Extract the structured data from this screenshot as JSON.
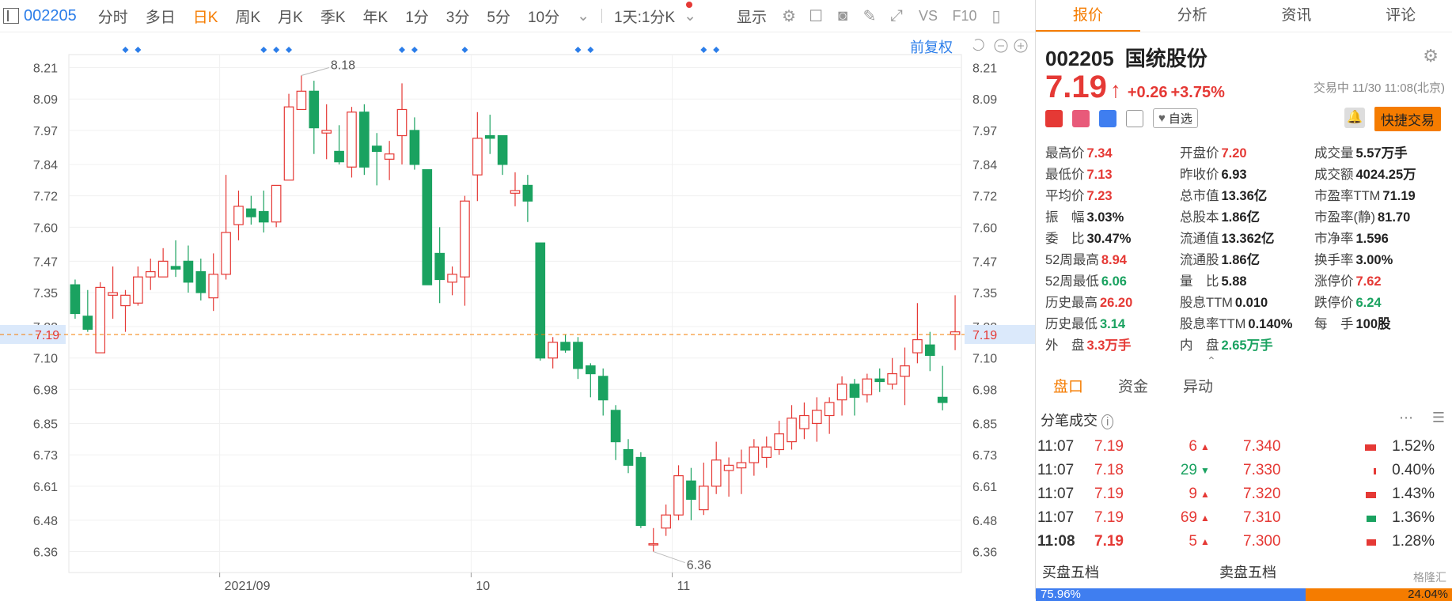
{
  "toolbar": {
    "code": "002205",
    "items": [
      "分时",
      "多日",
      "日K",
      "周K",
      "月K",
      "季K",
      "年K",
      "1分",
      "3分",
      "5分",
      "10分"
    ],
    "active_index": 2,
    "period": "1天:1分K",
    "display": "显示"
  },
  "chart": {
    "fq_label": "前复权",
    "current_price_label": "7.19",
    "max_label": "8.18",
    "min_label": "6.36"
  },
  "chart_data": {
    "type": "candlestick",
    "ylim": [
      6.28,
      8.26
    ],
    "ticks": [
      "8.21",
      "8.09",
      "7.97",
      "7.84",
      "7.72",
      "7.60",
      "7.47",
      "7.35",
      "7.22",
      "7.10",
      "6.98",
      "6.85",
      "6.73",
      "6.61",
      "6.48",
      "6.36"
    ],
    "x_labels": [
      {
        "label": "2021/09",
        "index": 12
      },
      {
        "label": "10",
        "index": 32
      },
      {
        "label": "11",
        "index": 48
      }
    ],
    "candles": [
      [
        7.38,
        7.27,
        7.4,
        7.25
      ],
      [
        7.26,
        7.21,
        7.36,
        7.2
      ],
      [
        7.12,
        7.37,
        7.39,
        7.12
      ],
      [
        7.34,
        7.35,
        7.45,
        7.25
      ],
      [
        7.3,
        7.34,
        7.36,
        7.2
      ],
      [
        7.31,
        7.41,
        7.45,
        7.3
      ],
      [
        7.41,
        7.43,
        7.48,
        7.36
      ],
      [
        7.41,
        7.47,
        7.52,
        7.41
      ],
      [
        7.45,
        7.44,
        7.55,
        7.41
      ],
      [
        7.47,
        7.39,
        7.53,
        7.35
      ],
      [
        7.43,
        7.35,
        7.48,
        7.32
      ],
      [
        7.33,
        7.42,
        7.5,
        7.28
      ],
      [
        7.42,
        7.58,
        7.8,
        7.4
      ],
      [
        7.61,
        7.68,
        7.74,
        7.55
      ],
      [
        7.67,
        7.64,
        7.72,
        7.61
      ],
      [
        7.66,
        7.62,
        7.74,
        7.58
      ],
      [
        7.62,
        7.76,
        7.76,
        7.6
      ],
      [
        7.78,
        8.06,
        8.11,
        7.78
      ],
      [
        8.05,
        8.12,
        8.18,
        8.05
      ],
      [
        8.12,
        7.98,
        8.16,
        7.88
      ],
      [
        7.96,
        7.97,
        8.07,
        7.86
      ],
      [
        7.89,
        7.85,
        7.99,
        7.84
      ],
      [
        7.83,
        8.04,
        8.06,
        7.79
      ],
      [
        8.04,
        7.83,
        8.07,
        7.8
      ],
      [
        7.91,
        7.89,
        7.96,
        7.76
      ],
      [
        7.86,
        7.88,
        7.93,
        7.78
      ],
      [
        7.95,
        8.05,
        8.15,
        7.84
      ],
      [
        7.97,
        7.84,
        8.02,
        7.82
      ],
      [
        7.82,
        7.38,
        7.82,
        7.38
      ],
      [
        7.5,
        7.4,
        7.6,
        7.31
      ],
      [
        7.39,
        7.42,
        7.45,
        7.34
      ],
      [
        7.41,
        7.7,
        7.72,
        7.3
      ],
      [
        7.8,
        7.94,
        8.04,
        7.7
      ],
      [
        7.95,
        7.94,
        8.03,
        7.88
      ],
      [
        7.95,
        7.84,
        7.95,
        7.8
      ],
      [
        7.73,
        7.74,
        7.81,
        7.68
      ],
      [
        7.76,
        7.7,
        7.8,
        7.62
      ],
      [
        7.54,
        7.1,
        7.54,
        7.09
      ],
      [
        7.1,
        7.16,
        7.18,
        7.06
      ],
      [
        7.16,
        7.13,
        7.19,
        7.12
      ],
      [
        7.16,
        7.06,
        7.18,
        7.02
      ],
      [
        7.07,
        7.04,
        7.08,
        6.95
      ],
      [
        7.03,
        6.94,
        7.06,
        6.88
      ],
      [
        6.9,
        6.78,
        6.92,
        6.71
      ],
      [
        6.75,
        6.69,
        6.79,
        6.66
      ],
      [
        6.72,
        6.46,
        6.74,
        6.45
      ],
      [
        6.39,
        6.39,
        6.45,
        6.36
      ],
      [
        6.45,
        6.5,
        6.54,
        6.42
      ],
      [
        6.5,
        6.65,
        6.69,
        6.48
      ],
      [
        6.63,
        6.56,
        6.68,
        6.48
      ],
      [
        6.52,
        6.61,
        6.7,
        6.5
      ],
      [
        6.61,
        6.71,
        6.78,
        6.58
      ],
      [
        6.67,
        6.69,
        6.72,
        6.57
      ],
      [
        6.68,
        6.7,
        6.75,
        6.58
      ],
      [
        6.7,
        6.76,
        6.79,
        6.65
      ],
      [
        6.72,
        6.76,
        6.8,
        6.68
      ],
      [
        6.75,
        6.81,
        6.86,
        6.73
      ],
      [
        6.78,
        6.87,
        6.92,
        6.75
      ],
      [
        6.83,
        6.88,
        6.93,
        6.79
      ],
      [
        6.85,
        6.9,
        6.95,
        6.78
      ],
      [
        6.88,
        6.93,
        6.95,
        6.81
      ],
      [
        6.94,
        7.0,
        7.03,
        6.88
      ],
      [
        7.0,
        6.95,
        7.02,
        6.88
      ],
      [
        6.96,
        7.02,
        7.04,
        6.93
      ],
      [
        7.02,
        7.01,
        7.06,
        6.97
      ],
      [
        7.0,
        7.04,
        7.1,
        6.98
      ],
      [
        7.03,
        7.07,
        7.14,
        6.92
      ],
      [
        7.12,
        7.17,
        7.31,
        7.08
      ],
      [
        7.15,
        7.11,
        7.2,
        7.05
      ],
      [
        6.95,
        6.93,
        7.07,
        6.9
      ],
      [
        7.19,
        7.2,
        7.34,
        7.13
      ]
    ],
    "markers": [
      4,
      5,
      15,
      16,
      17,
      26,
      27,
      31,
      40,
      41,
      50,
      51
    ]
  },
  "right": {
    "tabs": [
      "报价",
      "分析",
      "资讯",
      "评论"
    ],
    "code": "002205",
    "name": "国统股份",
    "price": "7.19",
    "arrow": "↑",
    "change": "+0.26",
    "change_pct": "+3.75%",
    "trade_time": "交易中 11/30 11:08(北京)",
    "watch_label": "自选",
    "fast_trade": "快捷交易",
    "quote_rows": [
      [
        [
          "最高价",
          "7.34",
          "red"
        ],
        [
          "开盘价",
          "7.20",
          "red"
        ],
        [
          "成交量",
          "5.57万手",
          "dark"
        ]
      ],
      [
        [
          "最低价",
          "7.13",
          "red"
        ],
        [
          "昨收价",
          "6.93",
          "dark"
        ],
        [
          "成交额",
          "4024.25万",
          "dark"
        ]
      ],
      [
        [
          "平均价",
          "7.23",
          "red"
        ],
        [
          "总市值",
          "13.36亿",
          "dark"
        ],
        [
          "市盈率TTM",
          "71.19",
          "dark"
        ]
      ],
      [
        [
          "振　幅",
          "3.03%",
          "dark"
        ],
        [
          "总股本",
          "1.86亿",
          "dark"
        ],
        [
          "市盈率(静)",
          "81.70",
          "dark"
        ]
      ],
      [
        [
          "委　比",
          "30.47%",
          "dark"
        ],
        [
          "流通值",
          "13.362亿",
          "dark"
        ],
        [
          "市净率",
          "1.596",
          "dark"
        ]
      ],
      [
        [
          "52周最高",
          "8.94",
          "red"
        ],
        [
          "流通股",
          "1.86亿",
          "dark"
        ],
        [
          "换手率",
          "3.00%",
          "dark"
        ]
      ],
      [
        [
          "52周最低",
          "6.06",
          "green"
        ],
        [
          "量　比",
          "5.88",
          "dark"
        ],
        [
          "涨停价",
          "7.62",
          "red"
        ]
      ],
      [
        [
          "历史最高",
          "26.20",
          "red"
        ],
        [
          "股息TTM",
          "0.010",
          "dark"
        ],
        [
          "跌停价",
          "6.24",
          "green"
        ]
      ],
      [
        [
          "历史最低",
          "3.14",
          "green"
        ],
        [
          "股息率TTM",
          "0.140%",
          "dark"
        ],
        [
          "每　手",
          "100股",
          "dark"
        ]
      ],
      [
        [
          "外　盘",
          "3.3万手",
          "red"
        ],
        [
          "内　盘",
          "2.65万手",
          "green"
        ],
        [
          "",
          ""
        ]
      ]
    ],
    "bottom_tabs": [
      "盘口",
      "资金",
      "异动"
    ],
    "fenbi_title": "分笔成交",
    "ticks": [
      {
        "t": "11:07",
        "p": "7.19",
        "v": "6",
        "dir": "up"
      },
      {
        "t": "11:07",
        "p": "7.18",
        "v": "29",
        "dir": "down"
      },
      {
        "t": "11:07",
        "p": "7.19",
        "v": "9",
        "dir": "up"
      },
      {
        "t": "11:07",
        "p": "7.19",
        "v": "69",
        "dir": "up"
      },
      {
        "t": "11:08",
        "p": "7.19",
        "v": "5",
        "dir": "up"
      }
    ],
    "price_dist": [
      {
        "p": "7.340",
        "pct": "1.52%",
        "w": 0.7
      },
      {
        "p": "7.330",
        "pct": "0.40%",
        "w": 0.15
      },
      {
        "p": "7.320",
        "pct": "1.43%",
        "w": 0.65
      },
      {
        "p": "7.310",
        "pct": "1.36%",
        "w": 0.62
      },
      {
        "p": "7.300",
        "pct": "1.28%",
        "w": 0.58
      }
    ],
    "buy5": "买盘五档",
    "sell5": "卖盘五档",
    "buy_pct": "75.96%",
    "sell_pct": "24.04%",
    "watermark": "格隆汇"
  }
}
